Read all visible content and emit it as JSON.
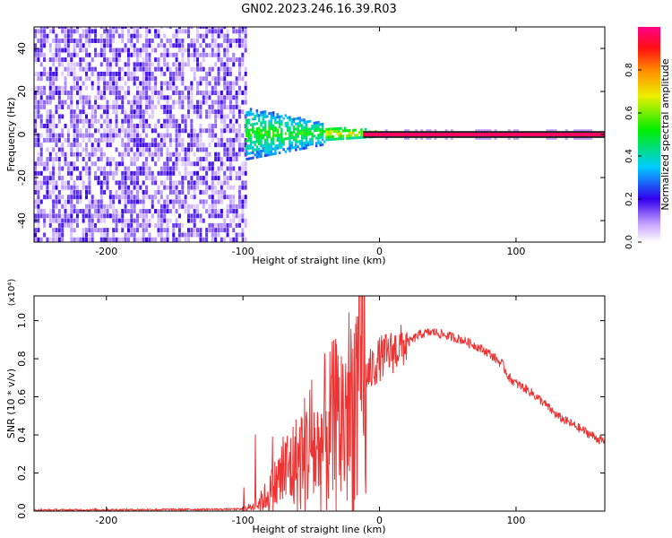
{
  "title": "GN02.2023.246.16.39.R03",
  "colorbar": {
    "label": "Normalized spectral amplitude",
    "ticks": [
      "0.0",
      "0.2",
      "0.4",
      "0.6",
      "0.8"
    ],
    "range": [
      0,
      1
    ]
  },
  "chart_data": [
    {
      "type": "heatmap",
      "xlabel": "Height of straight line (km)",
      "ylabel": "Frequency (Hz)",
      "xlim": [
        -253,
        165
      ],
      "ylim": [
        -50,
        50
      ],
      "x_ticks": [
        "-200",
        "-100",
        "0",
        "100"
      ],
      "y_ticks": [
        "-40",
        "-20",
        "0",
        "20",
        "40"
      ],
      "description_regions": [
        {
          "x": [
            -253,
            -98
          ],
          "y": [
            -50,
            50
          ],
          "level": 0.12
        },
        {
          "x": [
            -98,
            -40
          ],
          "y": [
            -12,
            12
          ],
          "level": 0.3
        },
        {
          "x": [
            -40,
            0
          ],
          "y": [
            -3,
            3
          ],
          "level": 0.6
        },
        {
          "x": [
            0,
            165
          ],
          "y": [
            -1.5,
            1.5
          ],
          "level": 0.95
        }
      ]
    },
    {
      "type": "line",
      "xlabel": "Height of straight line (km)",
      "ylabel": "SNR (10 * v/v)",
      "y_multiplier": "(x10⁴)",
      "xlim": [
        -253,
        165
      ],
      "ylim": [
        0,
        1.13
      ],
      "x_ticks": [
        "-200",
        "-100",
        "0",
        "100"
      ],
      "y_ticks": [
        "0.0",
        "0.2",
        "0.4",
        "0.6",
        "0.8",
        "1.0"
      ],
      "color": "#ee3333",
      "series": [
        {
          "name": "",
          "x": [
            -253,
            -100,
            -90,
            -80,
            -70,
            -60,
            -50,
            -45,
            -40,
            -30,
            -20,
            -15,
            -10,
            0,
            10,
            20,
            30,
            40,
            50,
            60,
            70,
            80,
            90,
            95,
            100,
            110,
            120,
            130,
            140,
            150,
            165
          ],
          "y": [
            0.005,
            0.01,
            0.03,
            0.1,
            0.2,
            0.25,
            0.35,
            0.3,
            0.4,
            0.45,
            0.55,
            0.65,
            0.7,
            0.8,
            0.84,
            0.88,
            0.93,
            0.94,
            0.92,
            0.9,
            0.87,
            0.83,
            0.77,
            0.7,
            0.67,
            0.63,
            0.57,
            0.5,
            0.46,
            0.42,
            0.36
          ]
        }
      ]
    }
  ]
}
